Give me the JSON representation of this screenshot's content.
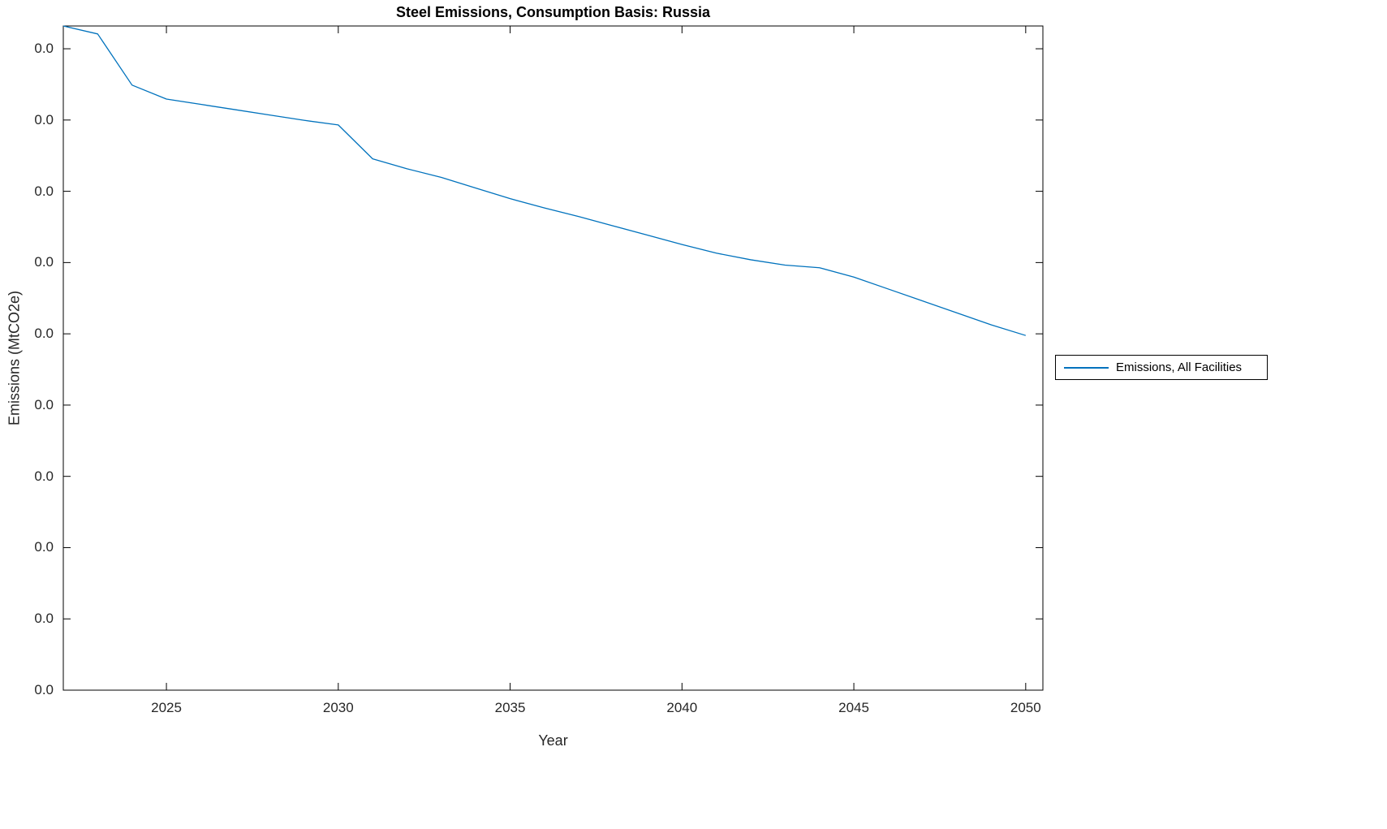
{
  "title": "Steel Emissions, Consumption Basis: Russia",
  "colors": {
    "line": "#0072BD",
    "axis": "#000000",
    "tick_text": "#262626",
    "background": "#ffffff"
  },
  "chart_data": {
    "type": "line",
    "title": "Steel Emissions, Consumption Basis: Russia",
    "xlabel": "Year",
    "ylabel": "Emissions (MtCO2e)",
    "xlim": [
      2022,
      2050.5
    ],
    "ylim": [
      0,
      1
    ],
    "grid": false,
    "xticks": [
      2025,
      2030,
      2035,
      2040,
      2045,
      2050
    ],
    "xtick_labels": [
      "2025",
      "2030",
      "2035",
      "2040",
      "2045",
      "2050"
    ],
    "ytick_labels": [
      "0.0",
      "0.0",
      "0.0",
      "0.0",
      "0.0",
      "0.0",
      "0.0",
      "0.0",
      "0.0",
      "0.0"
    ],
    "ytick_note": "All y-axis tick labels display 0.0; series values below are normalized estimates of plotted line height (0 = bottom axis, 1 = top axis)",
    "x": [
      2022,
      2023,
      2024,
      2025,
      2026,
      2027,
      2028,
      2029,
      2030,
      2031,
      2032,
      2033,
      2034,
      2035,
      2036,
      2037,
      2038,
      2039,
      2040,
      2041,
      2042,
      2043,
      2044,
      2045,
      2046,
      2047,
      2048,
      2049,
      2050
    ],
    "series": [
      {
        "name": "Emissions, All Facilities",
        "color": "#0072BD",
        "values": [
          1.0,
          0.988,
          0.911,
          0.89,
          0.882,
          0.874,
          0.866,
          0.858,
          0.851,
          0.8,
          0.785,
          0.772,
          0.756,
          0.74,
          0.726,
          0.713,
          0.699,
          0.685,
          0.671,
          0.658,
          0.648,
          0.64,
          0.636,
          0.622,
          0.604,
          0.586,
          0.568,
          0.55,
          0.534
        ]
      }
    ],
    "legend": {
      "position": "right-outside",
      "entries": [
        "Emissions, All Facilities"
      ]
    }
  }
}
